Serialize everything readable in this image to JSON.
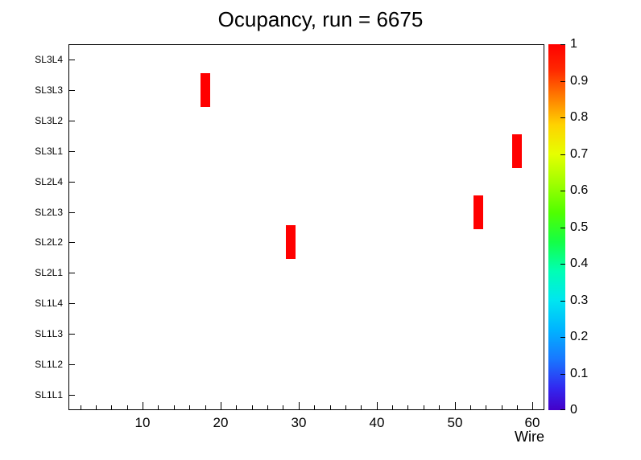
{
  "title": "Ocupancy, run = 6675",
  "colors": {
    "background": "#ffffff",
    "frame_border": "#000000",
    "text": "#000000",
    "hit": "#ff0000"
  },
  "chart_data": {
    "type": "heatmap",
    "title": "Ocupancy, run = 6675",
    "xlabel": "Wire",
    "ylabel": "",
    "grid": false,
    "legend_position": "right-colorbar",
    "x_range": [
      0.5,
      61.5
    ],
    "x_major_ticks": [
      10,
      20,
      30,
      40,
      50,
      60
    ],
    "x_minor_tick_step": 2,
    "y_categories": [
      "SL1L1",
      "SL1L2",
      "SL1L3",
      "SL1L4",
      "SL2L1",
      "SL2L2",
      "SL2L3",
      "SL2L4",
      "SL3L1",
      "SL3L2",
      "SL3L3",
      "SL3L4"
    ],
    "z_range": [
      0,
      1
    ],
    "z_ticks": [
      "0",
      "0.1",
      "0.2",
      "0.3",
      "0.4",
      "0.5",
      "0.6",
      "0.7",
      "0.8",
      "0.9",
      "1"
    ],
    "hits": [
      {
        "wire": 18,
        "layer": "SL3L3",
        "value": 1
      },
      {
        "wire": 29,
        "layer": "SL2L2",
        "value": 1
      },
      {
        "wire": 53,
        "layer": "SL2L3",
        "value": 1
      },
      {
        "wire": 58,
        "layer": "SL3L1",
        "value": 1
      }
    ],
    "palette": [
      {
        "pos": 0.0,
        "color": "#4400c8"
      },
      {
        "pos": 0.06,
        "color": "#3228f0"
      },
      {
        "pos": 0.14,
        "color": "#1878ff"
      },
      {
        "pos": 0.22,
        "color": "#00b4ff"
      },
      {
        "pos": 0.3,
        "color": "#00e6f0"
      },
      {
        "pos": 0.38,
        "color": "#00ffb4"
      },
      {
        "pos": 0.46,
        "color": "#14ff46"
      },
      {
        "pos": 0.54,
        "color": "#50ff00"
      },
      {
        "pos": 0.62,
        "color": "#a0ff00"
      },
      {
        "pos": 0.7,
        "color": "#e6ff00"
      },
      {
        "pos": 0.78,
        "color": "#ffd200"
      },
      {
        "pos": 0.86,
        "color": "#ff7800"
      },
      {
        "pos": 0.93,
        "color": "#ff2800"
      },
      {
        "pos": 1.0,
        "color": "#ff0000"
      }
    ]
  }
}
